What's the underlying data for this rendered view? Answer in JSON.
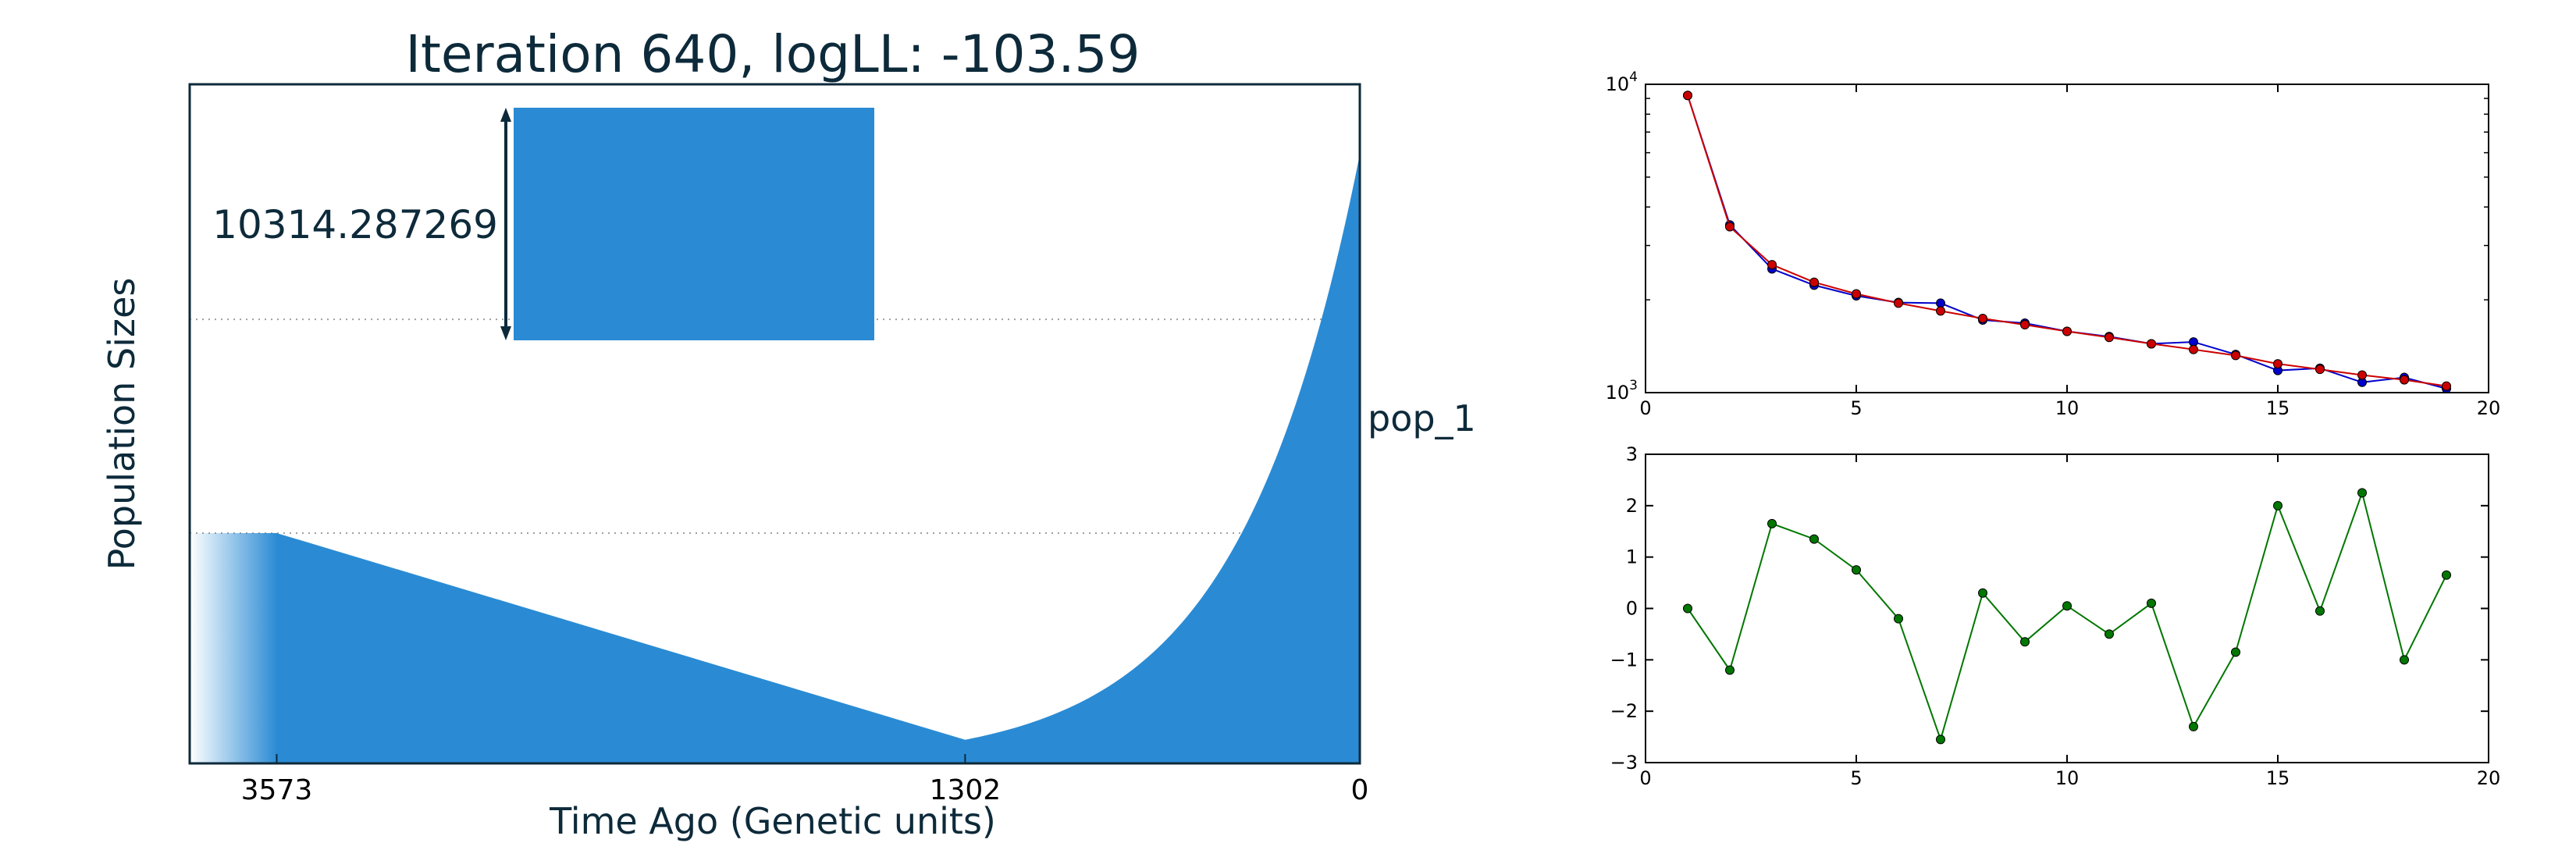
{
  "chart_data": [
    {
      "type": "area",
      "title": "Iteration 640, logLL:    -103.59",
      "xlabel": "Time Ago (Genetic units)",
      "ylabel": "Population Sizes",
      "xlim": [
        3860,
        0
      ],
      "x_ticks": [
        "3573",
        "1302",
        "0"
      ],
      "x_tick_values": [
        3573,
        1302,
        0
      ],
      "series": [
        {
          "name": "pop_1"
        }
      ],
      "population_label": "pop_1",
      "scale_bar_label": "10314.287269",
      "scale_bar_value": 10314.287269,
      "profile": {
        "present_size": 10314.287269,
        "size_at_1302": 400,
        "size_at_3573": 3900,
        "ancestral_size": 3900,
        "growth_1302_to_0": "exponential",
        "decline_3573_to_1302": "linear"
      },
      "reference_lines": [
        3900,
        7520
      ],
      "grid": false,
      "fill_color": "#2a8bd4"
    },
    {
      "type": "line",
      "yscale": "log",
      "xlim": [
        0,
        20
      ],
      "ylim": [
        1000,
        10000
      ],
      "x_ticks": [
        "0",
        "5",
        "10",
        "15",
        "20"
      ],
      "y_ticks": [
        {
          "base": "10",
          "exp": "3",
          "value": 1000
        },
        {
          "base": "10",
          "exp": "4",
          "value": 10000
        }
      ],
      "x": [
        1,
        2,
        3,
        4,
        5,
        6,
        7,
        8,
        9,
        10,
        11,
        12,
        13,
        14,
        15,
        16,
        17,
        18,
        19
      ],
      "series": [
        {
          "color": "#0000cc",
          "values": [
            9200,
            3500,
            2520,
            2230,
            2060,
            1960,
            1950,
            1720,
            1680,
            1580,
            1520,
            1440,
            1460,
            1330,
            1180,
            1200,
            1080,
            1120,
            1030
          ]
        },
        {
          "color": "#cc0000",
          "values": [
            9200,
            3450,
            2600,
            2280,
            2090,
            1950,
            1840,
            1740,
            1660,
            1580,
            1510,
            1440,
            1380,
            1320,
            1240,
            1190,
            1140,
            1100,
            1050
          ]
        }
      ],
      "grid": false
    },
    {
      "type": "line",
      "xlim": [
        0,
        20
      ],
      "ylim": [
        -3,
        3
      ],
      "x_ticks": [
        "0",
        "5",
        "10",
        "15",
        "20"
      ],
      "y_ticks": [
        "−3",
        "−2",
        "−1",
        "0",
        "1",
        "2",
        "3"
      ],
      "y_tick_values": [
        -3,
        -2,
        -1,
        0,
        1,
        2,
        3
      ],
      "x": [
        1,
        2,
        3,
        4,
        5,
        6,
        7,
        8,
        9,
        10,
        11,
        12,
        13,
        14,
        15,
        16,
        17,
        18,
        19
      ],
      "series": [
        {
          "color": "#007700",
          "values": [
            0.0,
            -1.2,
            1.65,
            1.35,
            0.75,
            -0.2,
            -2.55,
            0.3,
            -0.65,
            0.05,
            -0.5,
            0.1,
            -2.3,
            -0.85,
            2.0,
            -0.05,
            2.25,
            -1.0,
            0.65
          ]
        }
      ],
      "grid": false
    }
  ]
}
